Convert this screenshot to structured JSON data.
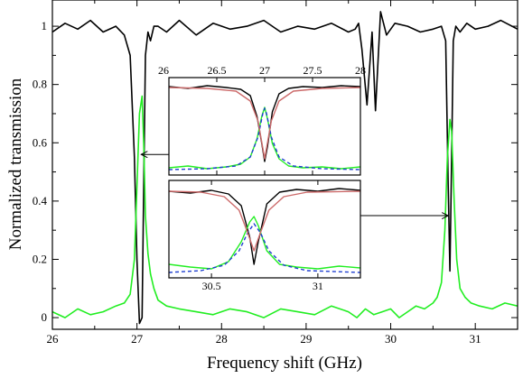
{
  "chart_data": {
    "type": "line",
    "xlabel": "Frequency shift (GHz)",
    "ylabel": "Normalized transmission",
    "xlim": [
      26,
      31.5
    ],
    "ylim": [
      -0.04,
      1.09
    ],
    "xticks": [
      26,
      27,
      28,
      29,
      30,
      31
    ],
    "yticks": [
      0,
      0.2,
      0.4,
      0.6,
      0.8,
      1
    ],
    "xtick_labels": [
      "26",
      "27",
      "28",
      "29",
      "30",
      "31"
    ],
    "ytick_labels": [
      "0",
      "0.2",
      "0.4",
      "0.6",
      "0.8",
      "1"
    ],
    "grid": false,
    "legend": "none",
    "colors": {
      "transmission": "#000000",
      "reflection": "#22ee22",
      "fit_lorentzian": "#1f3fd0",
      "fit_model": "#cc6a6a"
    },
    "series": [
      {
        "color": "#000000",
        "x": [
          26.0,
          26.15,
          26.3,
          26.45,
          26.6,
          26.75,
          26.85,
          26.92,
          26.97,
          27.0,
          27.03,
          27.06,
          27.08,
          27.1,
          27.13,
          27.16,
          27.2,
          27.25,
          27.35,
          27.5,
          27.7,
          27.9,
          28.1,
          28.3,
          28.5,
          28.7,
          28.9,
          29.1,
          29.3,
          29.5,
          29.58,
          29.62,
          29.66,
          29.72,
          29.78,
          29.82,
          29.88,
          29.95,
          30.05,
          30.2,
          30.35,
          30.5,
          30.6,
          30.65,
          30.68,
          30.7,
          30.72,
          30.74,
          30.77,
          30.82,
          30.9,
          31.0,
          31.15,
          31.3,
          31.5
        ],
        "y": [
          0.98,
          1.01,
          0.99,
          1.02,
          0.98,
          1.0,
          0.97,
          0.9,
          0.55,
          0.2,
          -0.02,
          0.0,
          0.45,
          0.9,
          0.98,
          0.95,
          1.0,
          1.0,
          0.98,
          1.02,
          0.97,
          1.01,
          0.99,
          1.0,
          1.02,
          0.98,
          1.0,
          0.99,
          1.01,
          0.98,
          0.99,
          1.01,
          0.92,
          0.73,
          0.98,
          0.71,
          1.05,
          0.97,
          1.01,
          1.0,
          0.98,
          0.99,
          1.0,
          0.95,
          0.45,
          0.16,
          0.55,
          0.95,
          1.0,
          0.98,
          1.01,
          0.99,
          1.0,
          1.02,
          0.99
        ]
      },
      {
        "color": "#22ee22",
        "x": [
          26.0,
          26.15,
          26.3,
          26.45,
          26.6,
          26.75,
          26.85,
          26.92,
          26.97,
          27.0,
          27.03,
          27.06,
          27.08,
          27.1,
          27.13,
          27.16,
          27.2,
          27.25,
          27.35,
          27.5,
          27.7,
          27.9,
          28.1,
          28.3,
          28.5,
          28.7,
          28.9,
          29.1,
          29.3,
          29.5,
          29.6,
          29.7,
          29.8,
          29.9,
          30.0,
          30.1,
          30.2,
          30.3,
          30.4,
          30.5,
          30.55,
          30.6,
          30.64,
          30.67,
          30.7,
          30.72,
          30.75,
          30.78,
          30.82,
          30.88,
          30.95,
          31.05,
          31.2,
          31.35,
          31.5
        ],
        "y": [
          0.02,
          0.0,
          0.03,
          0.01,
          0.02,
          0.04,
          0.05,
          0.08,
          0.2,
          0.45,
          0.7,
          0.76,
          0.6,
          0.35,
          0.22,
          0.15,
          0.1,
          0.06,
          0.04,
          0.03,
          0.02,
          0.01,
          0.03,
          0.02,
          0.0,
          0.03,
          0.02,
          0.01,
          0.04,
          0.02,
          0.0,
          0.03,
          0.01,
          0.02,
          0.03,
          0.0,
          0.02,
          0.04,
          0.03,
          0.05,
          0.07,
          0.12,
          0.3,
          0.55,
          0.68,
          0.64,
          0.4,
          0.2,
          0.1,
          0.07,
          0.05,
          0.04,
          0.03,
          0.05,
          0.04
        ]
      }
    ],
    "annotations": [
      {
        "type": "arrow",
        "from": [
          27.72,
          0.56
        ],
        "to": [
          27.05,
          0.56
        ]
      },
      {
        "type": "arrow",
        "from": [
          29.0,
          0.35
        ],
        "to": [
          30.68,
          0.35
        ]
      }
    ],
    "insets": [
      {
        "xlim": [
          26.0,
          28.0
        ],
        "ylim": [
          0.0,
          1.08
        ],
        "xticks": [
          26,
          26.5,
          27,
          27.5,
          28
        ],
        "xtick_labels": [
          "26",
          "26.5",
          "27",
          "27.5",
          "28"
        ],
        "xtick_position": "top",
        "series": [
          {
            "color": "#000000",
            "x": [
              26.0,
              26.2,
              26.4,
              26.6,
              26.75,
              26.85,
              26.92,
              26.97,
              27.0,
              27.03,
              27.08,
              27.15,
              27.25,
              27.4,
              27.6,
              27.8,
              28.0
            ],
            "y": [
              0.98,
              0.96,
              0.99,
              0.97,
              0.95,
              0.88,
              0.65,
              0.35,
              0.15,
              0.32,
              0.7,
              0.9,
              0.96,
              0.98,
              0.97,
              0.99,
              0.98
            ]
          },
          {
            "color": "#22ee22",
            "x": [
              26.0,
              26.2,
              26.4,
              26.6,
              26.75,
              26.85,
              26.92,
              26.97,
              27.0,
              27.03,
              27.08,
              27.15,
              27.25,
              27.4,
              27.6,
              27.8,
              28.0
            ],
            "y": [
              0.08,
              0.1,
              0.07,
              0.09,
              0.12,
              0.2,
              0.4,
              0.65,
              0.75,
              0.62,
              0.35,
              0.18,
              0.1,
              0.08,
              0.09,
              0.07,
              0.09
            ]
          },
          {
            "color": "#1f3fd0",
            "dashed": true,
            "x": [
              26.0,
              26.4,
              26.7,
              26.85,
              26.93,
              26.98,
              27.0,
              27.02,
              27.07,
              27.15,
              27.3,
              27.6,
              28.0
            ],
            "y": [
              0.06,
              0.07,
              0.1,
              0.2,
              0.42,
              0.68,
              0.74,
              0.68,
              0.42,
              0.2,
              0.1,
              0.07,
              0.06
            ]
          },
          {
            "color": "#cc6a6a",
            "x": [
              26.0,
              26.4,
              26.7,
              26.85,
              26.93,
              26.98,
              27.0,
              27.02,
              27.07,
              27.15,
              27.3,
              27.6,
              28.0
            ],
            "y": [
              0.97,
              0.96,
              0.93,
              0.82,
              0.6,
              0.3,
              0.18,
              0.3,
              0.6,
              0.82,
              0.93,
              0.96,
              0.97
            ]
          }
        ]
      },
      {
        "xlim": [
          30.3,
          31.2
        ],
        "ylim": [
          0.0,
          1.08
        ],
        "xticks": [
          30.5,
          31
        ],
        "xtick_labels": [
          "30.5",
          "31"
        ],
        "xtick_position": "bottom",
        "series": [
          {
            "color": "#000000",
            "x": [
              30.3,
              30.4,
              30.5,
              30.58,
              30.64,
              30.68,
              30.7,
              30.72,
              30.76,
              30.82,
              30.9,
              31.0,
              31.1,
              31.2
            ],
            "y": [
              0.96,
              0.94,
              0.97,
              0.93,
              0.8,
              0.45,
              0.15,
              0.4,
              0.82,
              0.95,
              0.98,
              0.96,
              0.99,
              0.97
            ]
          },
          {
            "color": "#22ee22",
            "x": [
              30.3,
              30.4,
              30.5,
              30.58,
              30.64,
              30.68,
              30.7,
              30.72,
              30.76,
              30.82,
              30.9,
              31.0,
              31.1,
              31.2
            ],
            "y": [
              0.15,
              0.12,
              0.1,
              0.18,
              0.4,
              0.62,
              0.68,
              0.58,
              0.3,
              0.15,
              0.12,
              0.1,
              0.13,
              0.11
            ]
          },
          {
            "color": "#1f3fd0",
            "dashed": true,
            "x": [
              30.3,
              30.45,
              30.56,
              30.63,
              30.67,
              30.7,
              30.73,
              30.77,
              30.84,
              30.95,
              31.2
            ],
            "y": [
              0.06,
              0.08,
              0.14,
              0.3,
              0.5,
              0.6,
              0.5,
              0.3,
              0.14,
              0.08,
              0.06
            ]
          },
          {
            "color": "#cc6a6a",
            "x": [
              30.3,
              30.45,
              30.56,
              30.63,
              30.67,
              30.7,
              30.73,
              30.77,
              30.84,
              30.95,
              31.2
            ],
            "y": [
              0.96,
              0.95,
              0.9,
              0.75,
              0.5,
              0.3,
              0.5,
              0.75,
              0.9,
              0.95,
              0.96
            ]
          }
        ]
      }
    ]
  }
}
